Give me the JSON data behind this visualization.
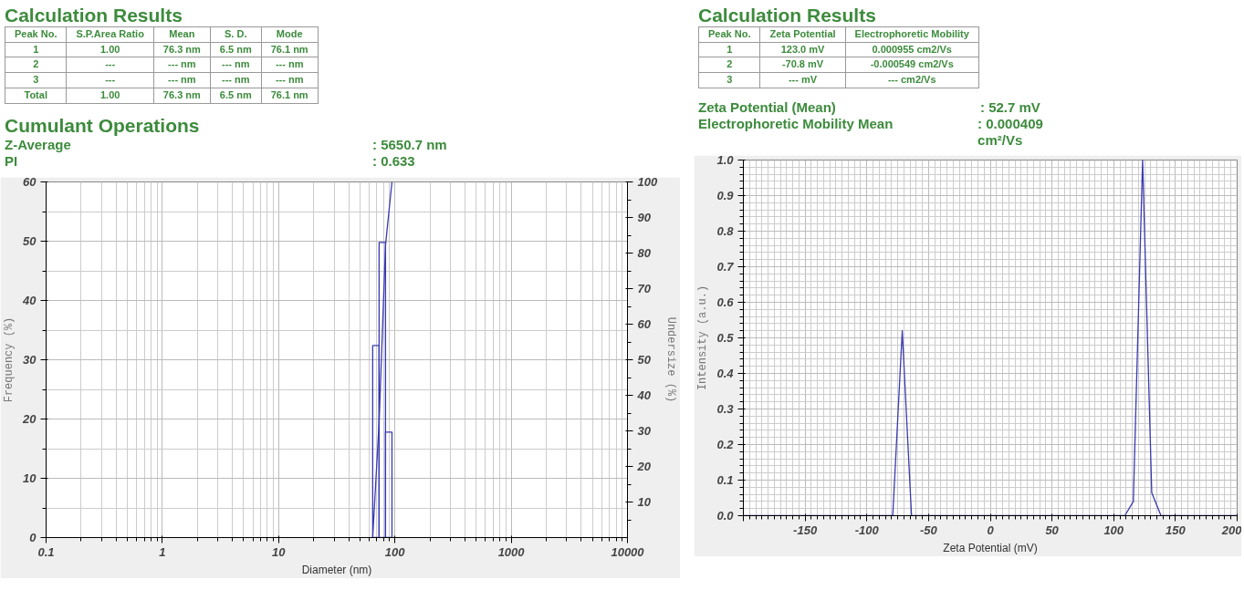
{
  "chart_data": [
    {
      "type": "other",
      "title": "Calculation Results",
      "categories": [
        "Peak No.",
        "S.P.Area Ratio",
        "Mean",
        "S. D.",
        "Mode"
      ],
      "annotations": [
        "1",
        "1.00",
        "76.3 nm",
        "6.5 nm",
        "76.1 nm",
        "2",
        "---",
        "--- nm",
        "--- nm",
        "--- nm",
        "3",
        "---",
        "--- nm",
        "--- nm",
        "--- nm",
        "Total",
        "1.00",
        "76.3 nm",
        "6.5 nm",
        "76.1 nm"
      ]
    },
    {
      "type": "other",
      "title": "Cumulant Operations",
      "annotations": [
        "Z-Average",
        ": 5650.7 nm",
        "PI",
        ": 0.633"
      ]
    },
    {
      "type": "histogram",
      "xlabel": "Diameter (nm)",
      "ylabel": "Frequency (%)",
      "y2label": "Undersize (%)",
      "log": "x",
      "grid": true,
      "xlim": [
        0.1,
        10000
      ],
      "xticks": [
        0.1,
        1,
        10,
        100,
        1000,
        10000
      ],
      "ylim": [
        0,
        60
      ],
      "yticks": [
        0,
        10,
        20,
        30,
        40,
        50,
        60
      ],
      "y2lim": [
        0,
        100
      ],
      "y2ticks": [
        10,
        20,
        30,
        40,
        50,
        60,
        70,
        80,
        90,
        100
      ],
      "series": [
        {
          "type": "histogram",
          "color": "#3a3ab0",
          "bins": [
            64.4,
            73.1,
            83.0,
            94.3
          ],
          "values": [
            32.4,
            49.8,
            17.8
          ]
        },
        {
          "type": "line",
          "axis": "y2",
          "color": "#3a3ab0",
          "x": [
            64.4,
            73.1,
            83.0,
            94.3
          ],
          "values": [
            0,
            32.4,
            82.2,
            100
          ]
        }
      ]
    },
    {
      "type": "other",
      "title": "Calculation Results",
      "categories": [
        "Peak No.",
        "Zeta Potential",
        "Electrophoretic Mobility"
      ],
      "annotations": [
        "1",
        "123.0 mV",
        "0.000955 cm2/Vs",
        "2",
        "-70.8 mV",
        "-0.000549 cm2/Vs",
        "3",
        "--- mV",
        "--- cm2/Vs"
      ]
    },
    {
      "type": "other",
      "annotations": [
        "Zeta Potential (Mean)",
        ": 52.7 mV",
        "Electrophoretic Mobility Mean",
        ": 0.000409 cm²/Vs"
      ]
    },
    {
      "type": "line",
      "xlabel": "Zeta Potential (mV)",
      "ylabel": "Intensity (a.u.)",
      "grid": true,
      "xlim": [
        -200,
        200
      ],
      "xticks": [
        {
          "value": -200,
          "label": null
        },
        -150,
        -100,
        -50,
        0,
        50,
        100,
        150,
        200
      ],
      "ylim": [
        0,
        1
      ],
      "yticks": [
        {
          "value": 0,
          "label": "0.0"
        },
        0.1,
        0.2,
        0.3,
        0.4,
        0.5,
        0.6,
        0.7,
        0.8,
        0.9,
        {
          "value": 1,
          "label": "1.0"
        }
      ],
      "series": [
        {
          "color": "#3a3ab0",
          "x": [
            -200,
            -79.0,
            -71.3,
            -63.8,
            109.0,
            115.9,
            123.4,
            130.8,
            138.3,
            200
          ],
          "values": [
            0,
            0,
            0.52,
            0,
            0,
            0.04,
            1.0,
            0.065,
            0,
            0
          ]
        }
      ]
    }
  ]
}
